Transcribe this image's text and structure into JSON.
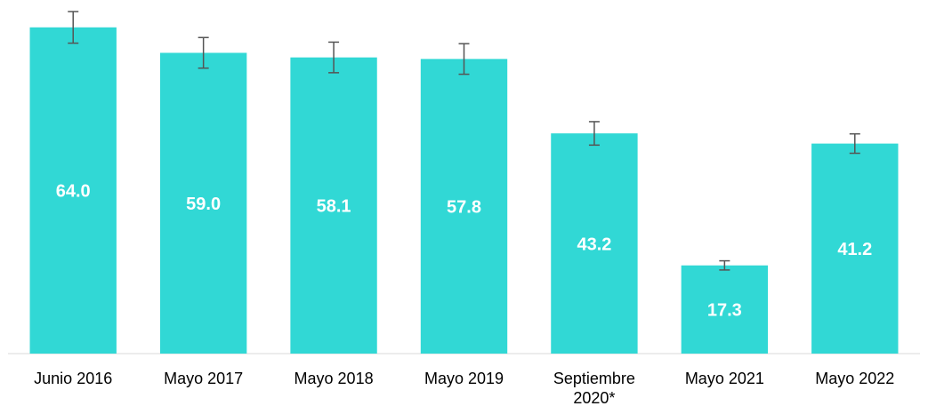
{
  "chart_data": {
    "type": "bar",
    "categories": [
      "Junio 2016",
      "Mayo 2017",
      "Mayo 2018",
      "Mayo 2019",
      "Septiembre 2020*",
      "Mayo 2021",
      "Mayo 2022"
    ],
    "values": [
      64.0,
      59.0,
      58.1,
      57.8,
      43.2,
      17.3,
      41.2
    ],
    "value_labels": [
      "64.0",
      "59.0",
      "58.1",
      "57.8",
      "43.2",
      "17.3",
      "41.2"
    ],
    "errors": [
      3.1,
      3.0,
      3.0,
      3.0,
      2.3,
      0.9,
      1.9
    ],
    "color": "#31d8d5",
    "error_color": "#555555"
  }
}
